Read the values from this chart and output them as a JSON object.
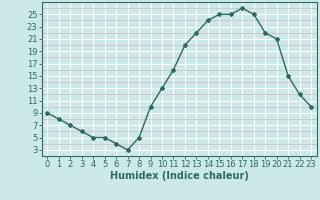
{
  "x": [
    0,
    1,
    2,
    3,
    4,
    5,
    6,
    7,
    8,
    9,
    10,
    11,
    12,
    13,
    14,
    15,
    16,
    17,
    18,
    19,
    20,
    21,
    22,
    23
  ],
  "y": [
    9,
    8,
    7,
    6,
    5,
    5,
    4,
    3,
    5,
    10,
    13,
    16,
    20,
    22,
    24,
    25,
    25,
    26,
    25,
    22,
    21,
    15,
    12,
    10
  ],
  "xlabel": "Humidex (Indice chaleur)",
  "xlim": [
    -0.5,
    23.5
  ],
  "ylim": [
    2,
    27
  ],
  "yticks": [
    3,
    5,
    7,
    9,
    11,
    13,
    15,
    17,
    19,
    21,
    23,
    25
  ],
  "xticks": [
    0,
    1,
    2,
    3,
    4,
    5,
    6,
    7,
    8,
    9,
    10,
    11,
    12,
    13,
    14,
    15,
    16,
    17,
    18,
    19,
    20,
    21,
    22,
    23
  ],
  "line_color": "#2e6b5e",
  "marker_color": "#2e6b5e",
  "bg_color": "#cce8e8",
  "grid_major_color": "#b8d8d8",
  "grid_white_color": "#ffffff",
  "xlabel_fontsize": 7,
  "tick_fontsize": 6
}
